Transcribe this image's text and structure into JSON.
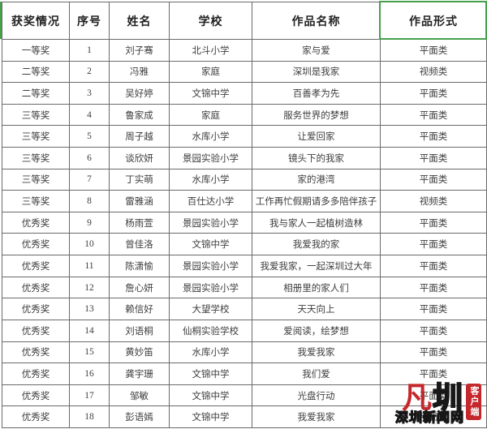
{
  "table": {
    "headers": [
      "获奖情况",
      "序号",
      "姓名",
      "学校",
      "作品名称",
      "作品形式"
    ],
    "rows": [
      {
        "award": "一等奖",
        "no": "1",
        "name": "刘子骞",
        "school": "北斗小学",
        "title": "家与爱",
        "form": "平面类"
      },
      {
        "award": "二等奖",
        "no": "2",
        "name": "冯雅",
        "school": "家庭",
        "title": "深圳是我家",
        "form": "视频类"
      },
      {
        "award": "二等奖",
        "no": "3",
        "name": "吴好婷",
        "school": "文锦中学",
        "title": "百善孝为先",
        "form": "平面类"
      },
      {
        "award": "三等奖",
        "no": "4",
        "name": "鲁家成",
        "school": "家庭",
        "title": "服务世界的梦想",
        "form": "平面类"
      },
      {
        "award": "三等奖",
        "no": "5",
        "name": "周子越",
        "school": "水库小学",
        "title": "让爱回家",
        "form": "平面类"
      },
      {
        "award": "三等奖",
        "no": "6",
        "name": "谈欣妍",
        "school": "景园实验小学",
        "title": "镜头下的我家",
        "form": "平面类"
      },
      {
        "award": "三等奖",
        "no": "7",
        "name": "丁实萌",
        "school": "水库小学",
        "title": "家的港湾",
        "form": "平面类"
      },
      {
        "award": "三等奖",
        "no": "8",
        "name": "雷雅涵",
        "school": "百仕达小学",
        "title": "工作再忙假期请多多陪伴孩子",
        "form": "视频类"
      },
      {
        "award": "优秀奖",
        "no": "9",
        "name": "杨雨萱",
        "school": "景园实验小学",
        "title": "我与家人一起植树造林",
        "form": "平面类"
      },
      {
        "award": "优秀奖",
        "no": "10",
        "name": "曾佳洛",
        "school": "文锦中学",
        "title": "我爱我的家",
        "form": "平面类"
      },
      {
        "award": "优秀奖",
        "no": "11",
        "name": "陈潇愉",
        "school": "景园实验小学",
        "title": "我爱我家，一起深圳过大年",
        "form": "平面类"
      },
      {
        "award": "优秀奖",
        "no": "12",
        "name": "詹心妍",
        "school": "景园实验小学",
        "title": "相册里的家人们",
        "form": "平面类"
      },
      {
        "award": "优秀奖",
        "no": "13",
        "name": "赖信好",
        "school": "大望学校",
        "title": "天天向上",
        "form": "平面类"
      },
      {
        "award": "优秀奖",
        "no": "14",
        "name": "刘语桐",
        "school": "仙桐实验学校",
        "title": "爱阅读，绘梦想",
        "form": "平面类"
      },
      {
        "award": "优秀奖",
        "no": "15",
        "name": "黄妙笛",
        "school": "水库小学",
        "title": "我爱我家",
        "form": "平面类"
      },
      {
        "award": "优秀奖",
        "no": "16",
        "name": "龚宇珊",
        "school": "文锦中学",
        "title": "我们爱",
        "form": "平面类"
      },
      {
        "award": "优秀奖",
        "no": "17",
        "name": "邹敏",
        "school": "文锦中学",
        "title": "光盘行动",
        "form": "平面类"
      },
      {
        "award": "优秀奖",
        "no": "18",
        "name": "彭语嫣",
        "school": "文锦中学",
        "title": "我爱我家",
        "form": "平面类"
      }
    ]
  },
  "selection": {
    "selected_column_label": "作品形式",
    "highlight_color": "#45a049"
  },
  "watermark": {
    "mark_fan": "凡",
    "mark_zhen": "圳",
    "client_label": "客户端",
    "site_name": "深圳新闻网",
    "brand_red": "#c5282c"
  }
}
